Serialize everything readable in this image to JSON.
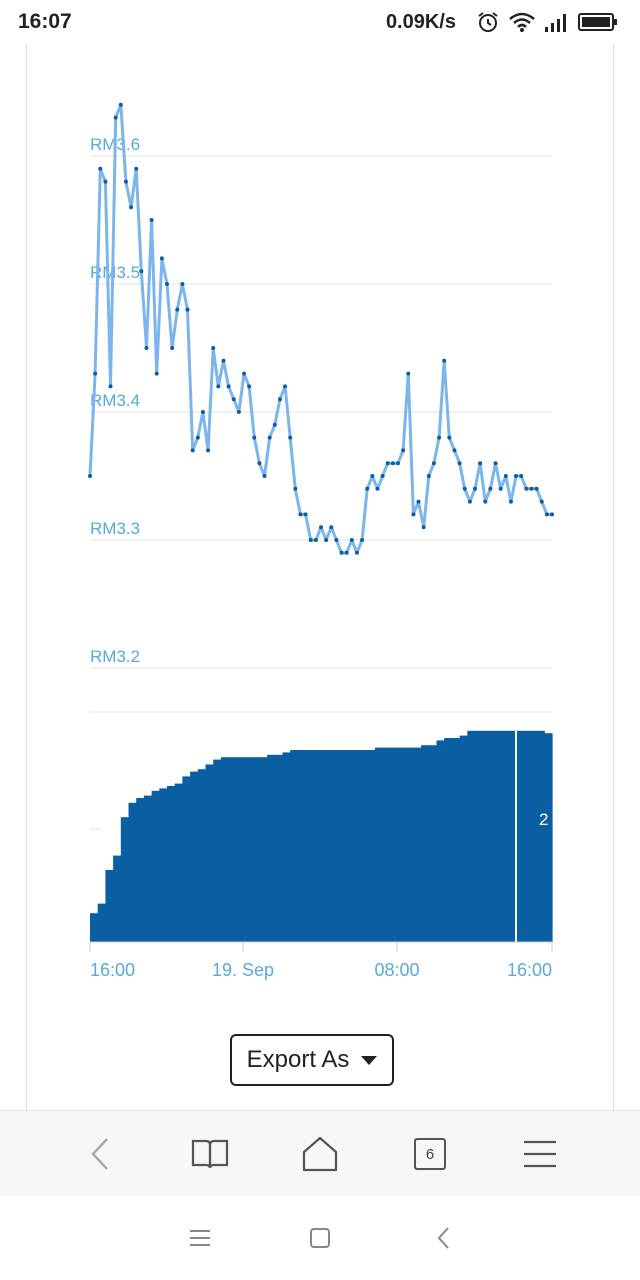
{
  "status_bar": {
    "time": "16:07",
    "net_speed": "0.09K/s",
    "icons": [
      "alarm-icon",
      "wifi-icon",
      "signal-icon",
      "battery-icon"
    ]
  },
  "chart_data": {
    "type": "line",
    "currency_prefix": "RM",
    "y_ticks": [
      "RM3.6",
      "RM3.5",
      "RM3.4",
      "RM3.3",
      "RM3.2"
    ],
    "ylim": [
      3.2,
      3.6
    ],
    "line_color": "#7cb5ec",
    "marker_color": "#0a5fa3",
    "x_ticks": [
      "16:00",
      "19. Sep",
      "08:00",
      "16:00"
    ],
    "series": [
      {
        "values": [
          3.35,
          3.43,
          3.59,
          3.58,
          3.42,
          3.63,
          3.64,
          3.58,
          3.56,
          3.59,
          3.51,
          3.45,
          3.55,
          3.43,
          3.52,
          3.5,
          3.45,
          3.48,
          3.5,
          3.48,
          3.37,
          3.38,
          3.4,
          3.37,
          3.45,
          3.42,
          3.44,
          3.42,
          3.41,
          3.4,
          3.43,
          3.42,
          3.38,
          3.36,
          3.35,
          3.38,
          3.39,
          3.41,
          3.42,
          3.38,
          3.34,
          3.32,
          3.32,
          3.3,
          3.3,
          3.31,
          3.3,
          3.31,
          3.3,
          3.29,
          3.29,
          3.3,
          3.29,
          3.3,
          3.34,
          3.35,
          3.34,
          3.35,
          3.36,
          3.36,
          3.36,
          3.37,
          3.43,
          3.32,
          3.33,
          3.31,
          3.35,
          3.36,
          3.38,
          3.44,
          3.38,
          3.37,
          3.36,
          3.34,
          3.33,
          3.34,
          3.36,
          3.33,
          3.34,
          3.36,
          3.34,
          3.35,
          3.33,
          3.35,
          3.35,
          3.34,
          3.34,
          3.34,
          3.33,
          3.32,
          3.32
        ]
      }
    ],
    "volume": {
      "color": "#0a5fa3",
      "values": [
        0.12,
        0.16,
        0.3,
        0.36,
        0.52,
        0.58,
        0.6,
        0.61,
        0.63,
        0.64,
        0.65,
        0.66,
        0.69,
        0.71,
        0.72,
        0.74,
        0.76,
        0.77,
        0.77,
        0.77,
        0.77,
        0.77,
        0.77,
        0.78,
        0.78,
        0.79,
        0.8,
        0.8,
        0.8,
        0.8,
        0.8,
        0.8,
        0.8,
        0.8,
        0.8,
        0.8,
        0.8,
        0.81,
        0.81,
        0.81,
        0.81,
        0.81,
        0.81,
        0.82,
        0.82,
        0.84,
        0.85,
        0.85,
        0.86,
        0.88,
        0.88,
        0.88,
        0.88,
        0.88,
        0.88,
        0.88,
        0.88,
        0.88,
        0.88,
        0.87
      ],
      "visible_label": "2"
    }
  },
  "export": {
    "label": "Export As"
  },
  "browser_toolbar": {
    "tab_count": "6"
  },
  "navigation": {}
}
